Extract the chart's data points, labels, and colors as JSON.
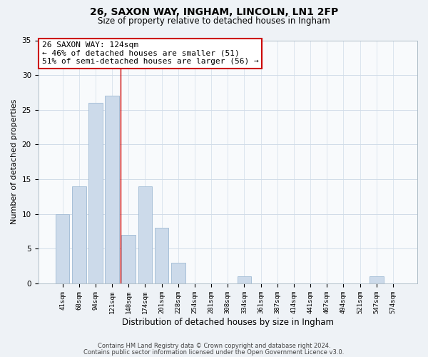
{
  "title_line1": "26, SAXON WAY, INGHAM, LINCOLN, LN1 2FP",
  "title_line2": "Size of property relative to detached houses in Ingham",
  "xlabel": "Distribution of detached houses by size in Ingham",
  "ylabel": "Number of detached properties",
  "bar_labels": [
    "41sqm",
    "68sqm",
    "94sqm",
    "121sqm",
    "148sqm",
    "174sqm",
    "201sqm",
    "228sqm",
    "254sqm",
    "281sqm",
    "308sqm",
    "334sqm",
    "361sqm",
    "387sqm",
    "414sqm",
    "441sqm",
    "467sqm",
    "494sqm",
    "521sqm",
    "547sqm",
    "574sqm"
  ],
  "bar_values": [
    10,
    14,
    26,
    27,
    7,
    14,
    8,
    3,
    0,
    0,
    0,
    1,
    0,
    0,
    0,
    0,
    0,
    0,
    0,
    1,
    0
  ],
  "bar_color": "#ccdaea",
  "bar_edge_color": "#a8c0d8",
  "ylim": [
    0,
    35
  ],
  "yticks": [
    0,
    5,
    10,
    15,
    20,
    25,
    30,
    35
  ],
  "annotation_text_line1": "26 SAXON WAY: 124sqm",
  "annotation_text_line2": "← 46% of detached houses are smaller (51)",
  "annotation_text_line3": "51% of semi-detached houses are larger (56) →",
  "annotation_box_edgecolor": "#cc0000",
  "annotation_box_facecolor": "#ffffff",
  "vline_x_index": 3.5,
  "vline_color": "#cc0000",
  "footer_line1": "Contains HM Land Registry data © Crown copyright and database right 2024.",
  "footer_line2": "Contains public sector information licensed under the Open Government Licence v3.0.",
  "background_color": "#eef2f6",
  "plot_background_color": "#f8fafc",
  "grid_color": "#d0dce8",
  "title_fontsize": 10,
  "subtitle_fontsize": 8.5,
  "tick_fontsize": 6.5,
  "ylabel_fontsize": 8,
  "xlabel_fontsize": 8.5,
  "footer_fontsize": 6,
  "annotation_fontsize": 8
}
